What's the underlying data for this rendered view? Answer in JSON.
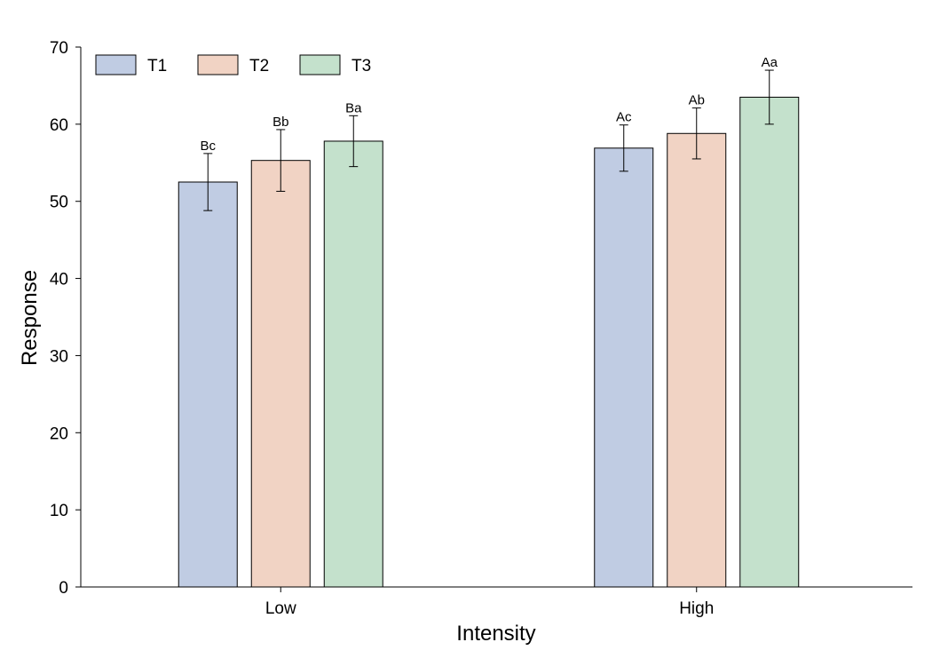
{
  "chart_data": {
    "type": "bar",
    "xlabel": "Intensity",
    "ylabel": "Response",
    "categories": [
      "Low",
      "High"
    ],
    "ylim": [
      0,
      70
    ],
    "yticks": [
      0,
      10,
      20,
      30,
      40,
      50,
      60,
      70
    ],
    "grid": false,
    "legend_position": "top-left",
    "series": [
      {
        "name": "T1",
        "color": "#c0cce3",
        "values": [
          52.5,
          56.9
        ],
        "errors": [
          3.7,
          3.0
        ],
        "labels": [
          "Bc",
          "Ac"
        ]
      },
      {
        "name": "T2",
        "color": "#f1d3c4",
        "values": [
          55.3,
          58.8
        ],
        "errors": [
          4.0,
          3.3
        ],
        "labels": [
          "Bb",
          "Ab"
        ]
      },
      {
        "name": "T3",
        "color": "#c4e1cc",
        "values": [
          57.8,
          63.5
        ],
        "errors": [
          3.3,
          3.5
        ],
        "labels": [
          "Ba",
          "Aa"
        ]
      }
    ]
  }
}
